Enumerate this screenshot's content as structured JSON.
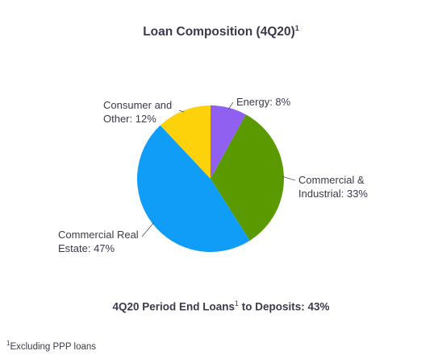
{
  "title": {
    "text": "Loan Composition (4Q20)",
    "sup": "1"
  },
  "chart_data": {
    "type": "pie",
    "title": "Loan Composition (4Q20)",
    "categories": [
      "Energy",
      "Commercial & Industrial",
      "Commercial Real Estate",
      "Consumer and Other"
    ],
    "values": [
      8,
      33,
      47,
      12
    ],
    "unit": "%",
    "colors": [
      "#9060f0",
      "#5a9a00",
      "#109df8",
      "#fdd20a"
    ],
    "labels": [
      [
        "Energy: 8%"
      ],
      [
        "Commercial &",
        "Industrial: 33%"
      ],
      [
        "Commercial Real",
        "Estate: 47%"
      ],
      [
        "Consumer and",
        "Other: 12%"
      ]
    ]
  },
  "metric": {
    "prefix": "4Q20 Period End Loans",
    "sup": "1",
    "suffix": " to Deposits: 43%"
  },
  "footnote": {
    "sup": "1",
    "text": "Excluding PPP loans"
  }
}
